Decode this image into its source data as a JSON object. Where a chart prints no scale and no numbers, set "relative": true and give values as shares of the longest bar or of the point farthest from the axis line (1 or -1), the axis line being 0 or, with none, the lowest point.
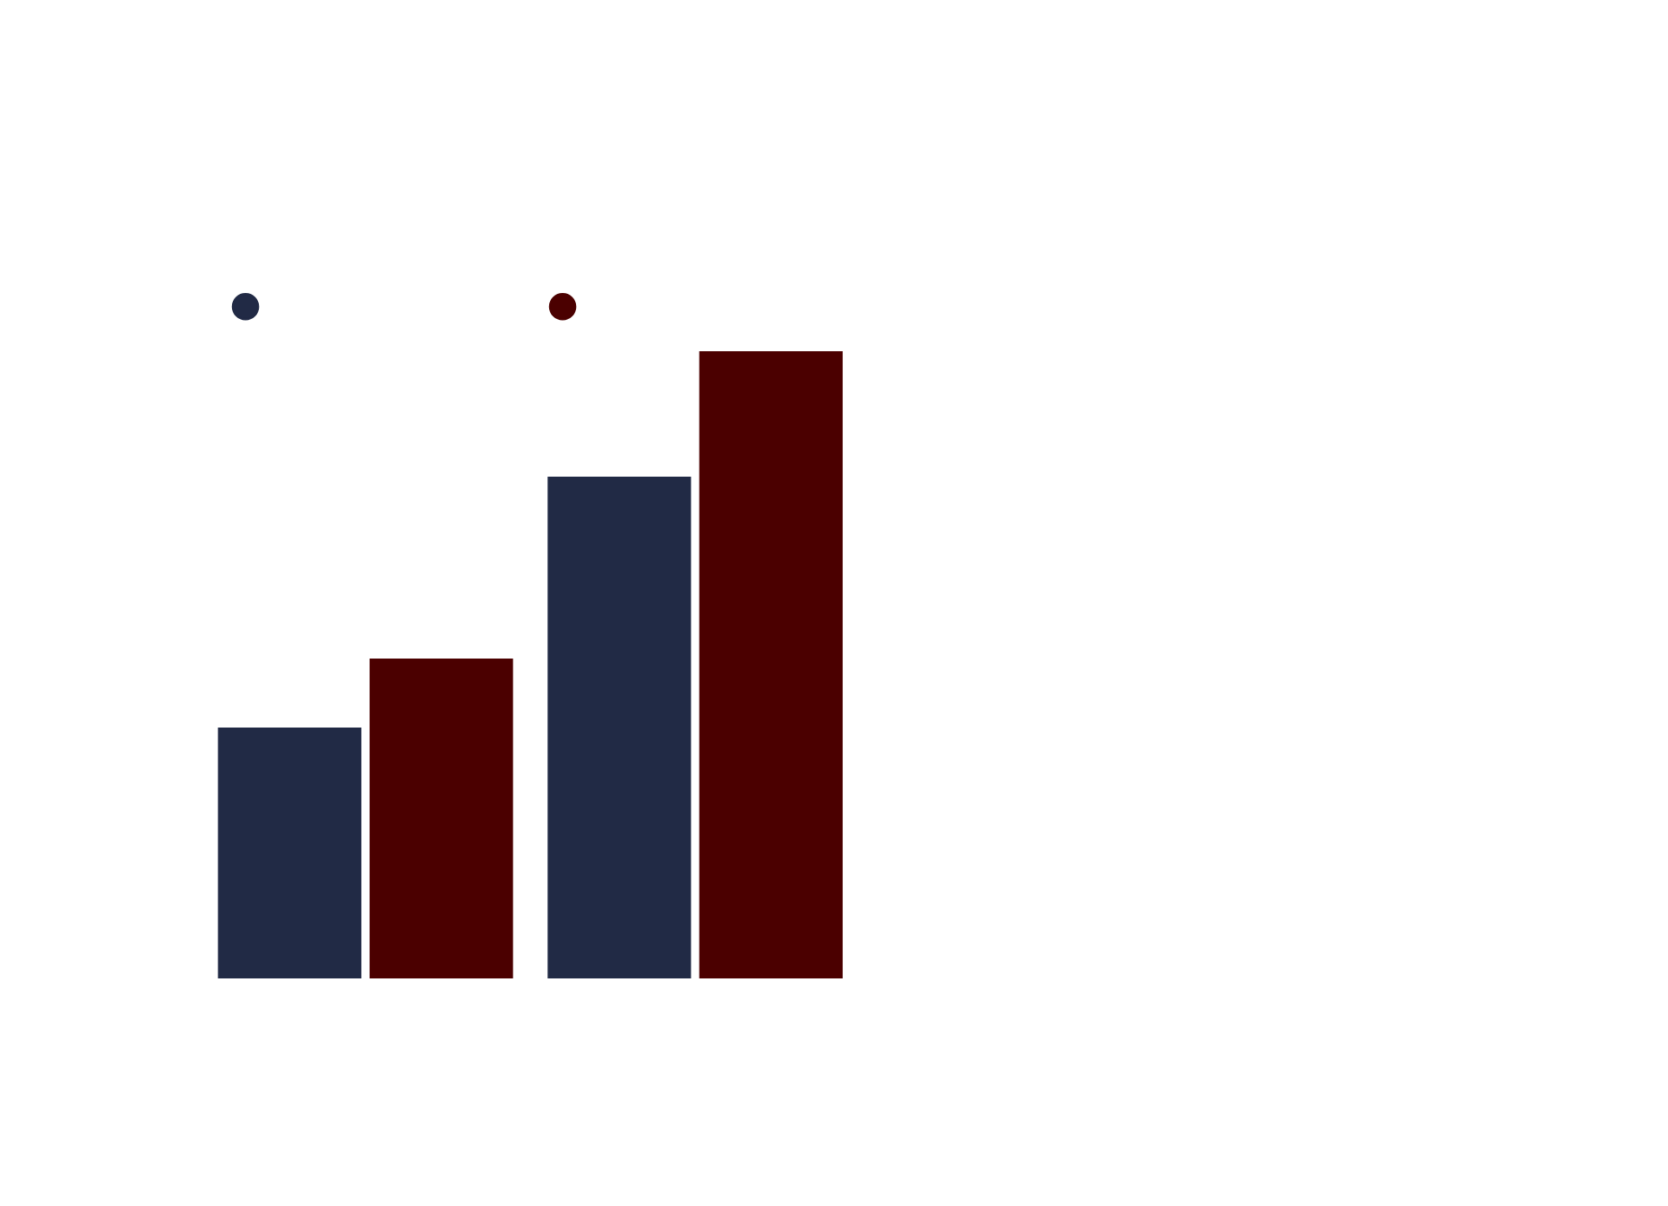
{
  "chart_data": {
    "type": "bar",
    "relative": true,
    "categories": [
      null,
      null
    ],
    "series": [
      {
        "color": "#212a45",
        "values": [
          0.4,
          0.8
        ]
      },
      {
        "color": "#4b0000",
        "values": [
          0.51,
          1
        ]
      }
    ],
    "grid": false
  }
}
